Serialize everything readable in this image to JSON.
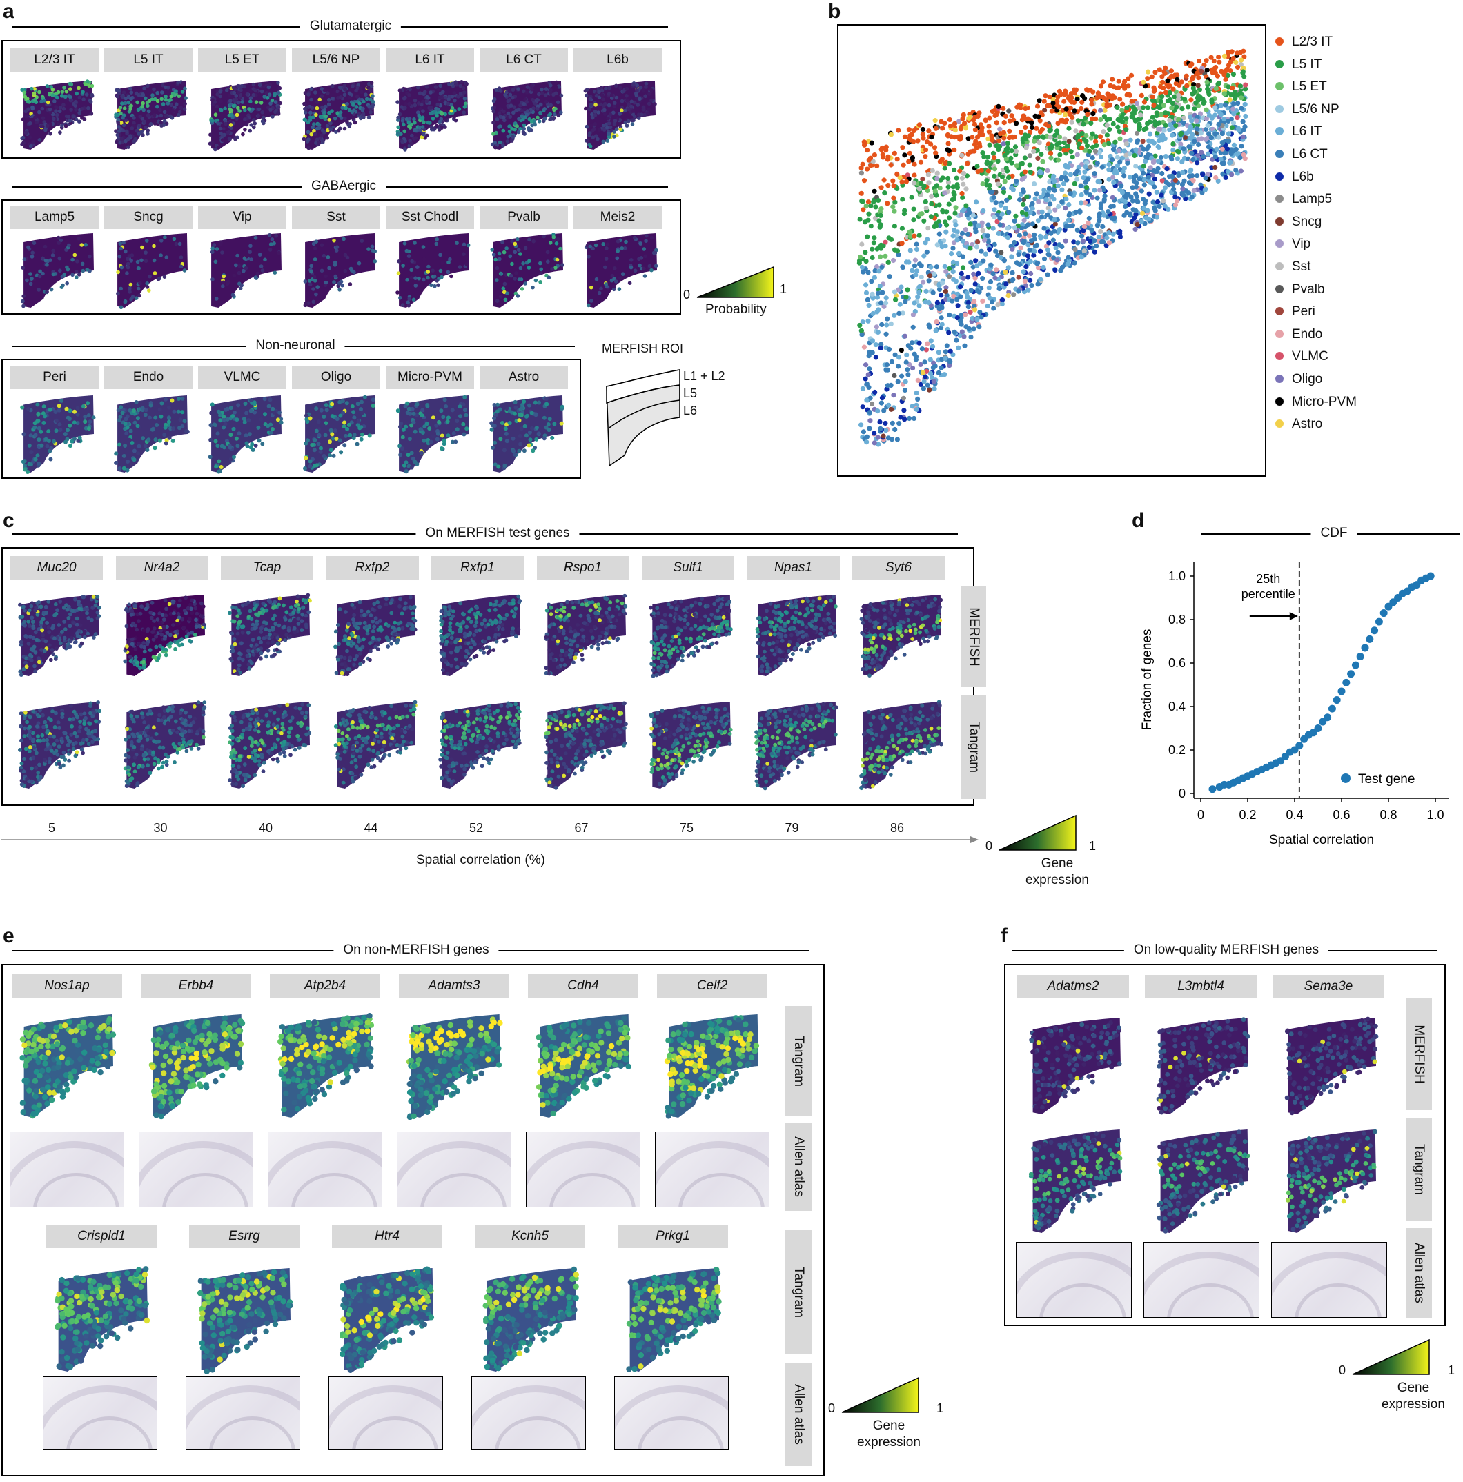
{
  "panel_letters": {
    "a": "a",
    "b": "b",
    "c": "c",
    "d": "d",
    "e": "e",
    "f": "f"
  },
  "panel_a": {
    "glut_title": "Glutamatergic",
    "glut_tabs": [
      "L2/3 IT",
      "L5 IT",
      "L5 ET",
      "L5/6 NP",
      "L6 IT",
      "L6 CT",
      "L6b"
    ],
    "gaba_title": "GABAergic",
    "gaba_tabs": [
      "Lamp5",
      "Sncg",
      "Vip",
      "Sst",
      "Sst Chodl",
      "Pvalb",
      "Meis2"
    ],
    "nonneu_title": "Non-neuronal",
    "nonneu_tabs": [
      "Peri",
      "Endo",
      "VLMC",
      "Oligo",
      "Micro-PVM",
      "Astro"
    ],
    "cbar": {
      "min": "0",
      "max": "1",
      "label": "Probability"
    },
    "roi_title": "MERFISH ROI",
    "roi_layers": [
      "L1 + L2",
      "L5",
      "L6"
    ]
  },
  "panel_b": {
    "legend": [
      {
        "name": "L2/3 IT",
        "color": "#e5531a"
      },
      {
        "name": "L5 IT",
        "color": "#2a9d48"
      },
      {
        "name": "L5 ET",
        "color": "#6cc06a"
      },
      {
        "name": "L5/6 NP",
        "color": "#9ecae1"
      },
      {
        "name": "L6 IT",
        "color": "#6baed6"
      },
      {
        "name": "L6 CT",
        "color": "#3a7fb8"
      },
      {
        "name": "L6b",
        "color": "#0d2aa8"
      },
      {
        "name": "Lamp5",
        "color": "#8c8c8c"
      },
      {
        "name": "Sncg",
        "color": "#7f3b2f"
      },
      {
        "name": "Vip",
        "color": "#a89bc9"
      },
      {
        "name": "Sst",
        "color": "#bdbdbd"
      },
      {
        "name": "Pvalb",
        "color": "#595959"
      },
      {
        "name": "Peri",
        "color": "#a0463c"
      },
      {
        "name": "Endo",
        "color": "#e6a2a8"
      },
      {
        "name": "VLMC",
        "color": "#d6536a"
      },
      {
        "name": "Oligo",
        "color": "#7b74b8"
      },
      {
        "name": "Micro-PVM",
        "color": "#000000"
      },
      {
        "name": "Astro",
        "color": "#f2d04a"
      }
    ]
  },
  "panel_c": {
    "title": "On MERFISH test genes",
    "genes": [
      "Muc20",
      "Nr4a2",
      "Tcap",
      "Rxfp2",
      "Rxfp1",
      "Rspo1",
      "Sulf1",
      "Npas1",
      "Syt6"
    ],
    "row_labels": [
      "MERFISH",
      "Tangram"
    ],
    "correlations": [
      "5",
      "30",
      "40",
      "44",
      "52",
      "67",
      "75",
      "79",
      "86"
    ],
    "axis_label": "Spatial correlation (%)",
    "cbar": {
      "min": "0",
      "max": "1",
      "label": "Gene\nexpression"
    }
  },
  "panel_d": {
    "title": "CDF",
    "annotation": "25th\npercentile",
    "legend": "Test gene",
    "color": "#1f77b4",
    "chart_data": {
      "type": "scatter",
      "title": "CDF",
      "xlabel": "Spatial correlation",
      "ylabel": "Fraction of genes",
      "xlim": [
        0,
        1.0
      ],
      "ylim": [
        0,
        1.0
      ],
      "xticks": [
        "0",
        "0.2",
        "0.4",
        "0.6",
        "0.8",
        "1.0"
      ],
      "yticks": [
        "0",
        "0.2",
        "0.4",
        "0.6",
        "0.8",
        "1.0"
      ],
      "vline": 0.42,
      "series": [
        {
          "name": "Test gene",
          "x": [
            0.05,
            0.08,
            0.1,
            0.12,
            0.14,
            0.16,
            0.18,
            0.2,
            0.22,
            0.24,
            0.26,
            0.28,
            0.3,
            0.32,
            0.34,
            0.36,
            0.38,
            0.4,
            0.42,
            0.44,
            0.46,
            0.48,
            0.5,
            0.52,
            0.54,
            0.56,
            0.58,
            0.6,
            0.62,
            0.64,
            0.66,
            0.68,
            0.7,
            0.72,
            0.74,
            0.76,
            0.78,
            0.8,
            0.82,
            0.84,
            0.86,
            0.88,
            0.9,
            0.92,
            0.94,
            0.96,
            0.98
          ],
          "y": [
            0.02,
            0.03,
            0.04,
            0.04,
            0.05,
            0.06,
            0.07,
            0.08,
            0.09,
            0.1,
            0.11,
            0.12,
            0.13,
            0.14,
            0.15,
            0.17,
            0.19,
            0.2,
            0.22,
            0.25,
            0.27,
            0.28,
            0.3,
            0.33,
            0.35,
            0.39,
            0.43,
            0.47,
            0.51,
            0.55,
            0.59,
            0.63,
            0.67,
            0.71,
            0.75,
            0.79,
            0.83,
            0.86,
            0.88,
            0.9,
            0.92,
            0.93,
            0.95,
            0.96,
            0.98,
            0.99,
            1.0
          ]
        }
      ]
    }
  },
  "panel_e": {
    "title": "On non-MERFISH genes",
    "genes_row1": [
      "Nos1ap",
      "Erbb4",
      "Atp2b4",
      "Adamts3",
      "Cdh4",
      "Celf2"
    ],
    "genes_row2": [
      "Crispld1",
      "Esrrg",
      "Htr4",
      "Kcnh5",
      "Prkg1"
    ],
    "row_labels": [
      "Tangram",
      "Allen atlas"
    ],
    "cbar": {
      "min": "0",
      "max": "1",
      "label": "Gene\nexpression"
    }
  },
  "panel_f": {
    "title": "On low-quality MERFISH genes",
    "genes": [
      "Adatms2",
      "L3mbtl4",
      "Sema3e"
    ],
    "row_labels": [
      "MERFISH",
      "Tangram",
      "Allen atlas"
    ],
    "cbar": {
      "min": "0",
      "max": "1",
      "label": "Gene\nexpression"
    }
  }
}
